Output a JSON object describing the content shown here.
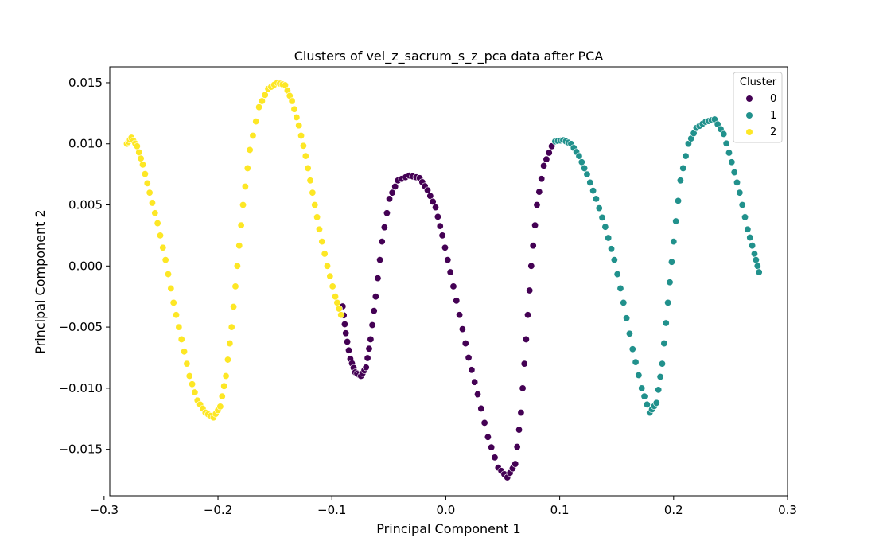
{
  "chart_data": {
    "type": "scatter",
    "title": "Clusters of vel_z_sacrum_s_z_pca data after PCA",
    "xlabel": "Principal Component 1",
    "ylabel": "Principal Component 2",
    "xlim": [
      -0.295,
      0.3
    ],
    "ylim": [
      -0.0188,
      0.0163
    ],
    "xticks": [
      -0.3,
      -0.2,
      -0.1,
      0.0,
      0.1,
      0.2,
      0.3
    ],
    "xtick_labels": [
      "−0.3",
      "−0.2",
      "−0.1",
      "0.0",
      "0.1",
      "0.2",
      "0.3"
    ],
    "yticks": [
      -0.015,
      -0.01,
      -0.005,
      0.0,
      0.005,
      0.01,
      0.015
    ],
    "ytick_labels": [
      "−0.015",
      "−0.010",
      "−0.005",
      "0.000",
      "0.005",
      "0.010",
      "0.015"
    ],
    "grid": false,
    "legend": {
      "title": "Cluster",
      "position": "top-right",
      "entries": [
        "0",
        "1",
        "2"
      ]
    },
    "series": [
      {
        "name": "0",
        "color": "#440154",
        "points": [
          [
            -0.0905,
            -0.0033
          ],
          [
            -0.0878,
            -0.0055
          ],
          [
            -0.0838,
            -0.0076
          ],
          [
            -0.0795,
            -0.0087
          ],
          [
            -0.0745,
            -0.009
          ],
          [
            -0.07,
            -0.0083
          ],
          [
            -0.066,
            -0.006
          ],
          [
            -0.0615,
            -0.0025
          ],
          [
            -0.056,
            0.002
          ],
          [
            -0.0495,
            0.0055
          ],
          [
            -0.042,
            0.007
          ],
          [
            -0.032,
            0.0074
          ],
          [
            -0.023,
            0.0072
          ],
          [
            -0.016,
            0.0062
          ],
          [
            -0.009,
            0.0048
          ],
          [
            -0.003,
            0.0025
          ],
          [
            0.004,
            -0.0005
          ],
          [
            0.012,
            -0.004
          ],
          [
            0.02,
            -0.0075
          ],
          [
            0.028,
            -0.0105
          ],
          [
            0.037,
            -0.014
          ],
          [
            0.046,
            -0.0165
          ],
          [
            0.054,
            -0.0173
          ],
          [
            0.061,
            -0.0162
          ],
          [
            0.066,
            -0.012
          ],
          [
            0.0705,
            -0.006
          ],
          [
            0.075,
            0.0
          ],
          [
            0.08,
            0.005
          ],
          [
            0.086,
            0.0082
          ],
          [
            0.093,
            0.0098
          ]
        ]
      },
      {
        "name": "1",
        "color": "#21918c",
        "points": [
          [
            0.096,
            0.0102
          ],
          [
            0.103,
            0.0103
          ],
          [
            0.11,
            0.01
          ],
          [
            0.117,
            0.009
          ],
          [
            0.124,
            0.0075
          ],
          [
            0.132,
            0.0055
          ],
          [
            0.14,
            0.0032
          ],
          [
            0.148,
            0.0005
          ],
          [
            0.156,
            -0.003
          ],
          [
            0.164,
            -0.0068
          ],
          [
            0.172,
            -0.01
          ],
          [
            0.179,
            -0.012
          ],
          [
            0.185,
            -0.0112
          ],
          [
            0.19,
            -0.008
          ],
          [
            0.195,
            -0.003
          ],
          [
            0.2,
            0.002
          ],
          [
            0.206,
            0.007
          ],
          [
            0.213,
            0.01
          ],
          [
            0.22,
            0.0113
          ],
          [
            0.228,
            0.0118
          ],
          [
            0.236,
            0.012
          ],
          [
            0.244,
            0.0108
          ],
          [
            0.251,
            0.0085
          ],
          [
            0.258,
            0.006
          ],
          [
            0.265,
            0.003
          ],
          [
            0.271,
            0.001
          ],
          [
            0.275,
            -0.0005
          ]
        ]
      },
      {
        "name": "2",
        "color": "#fde725",
        "points": [
          [
            -0.28,
            0.01
          ],
          [
            -0.276,
            0.0105
          ],
          [
            -0.271,
            0.0098
          ],
          [
            -0.266,
            0.0083
          ],
          [
            -0.26,
            0.006
          ],
          [
            -0.253,
            0.0035
          ],
          [
            -0.246,
            0.0005
          ],
          [
            -0.239,
            -0.003
          ],
          [
            -0.232,
            -0.006
          ],
          [
            -0.225,
            -0.009
          ],
          [
            -0.218,
            -0.011
          ],
          [
            -0.211,
            -0.012
          ],
          [
            -0.204,
            -0.0124
          ],
          [
            -0.198,
            -0.0115
          ],
          [
            -0.193,
            -0.009
          ],
          [
            -0.188,
            -0.005
          ],
          [
            -0.183,
            0.0
          ],
          [
            -0.178,
            0.005
          ],
          [
            -0.172,
            0.0095
          ],
          [
            -0.164,
            0.013
          ],
          [
            -0.156,
            0.0145
          ],
          [
            -0.148,
            0.015
          ],
          [
            -0.141,
            0.0148
          ],
          [
            -0.135,
            0.0135
          ],
          [
            -0.129,
            0.0115
          ],
          [
            -0.123,
            0.009
          ],
          [
            -0.117,
            0.006
          ],
          [
            -0.111,
            0.003
          ],
          [
            -0.104,
            0.0
          ],
          [
            -0.097,
            -0.0025
          ],
          [
            -0.092,
            -0.004
          ]
        ]
      }
    ]
  }
}
